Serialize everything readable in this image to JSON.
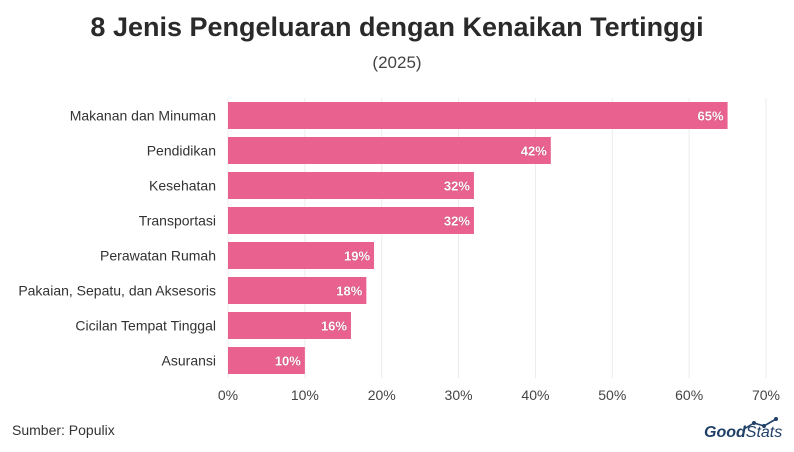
{
  "header": {
    "title": "8 Jenis Pengeluaran dengan Kenaikan Tertinggi",
    "subtitle": "(2025)"
  },
  "footer": {
    "source": "Sumber: Populix",
    "brand_bold": "Good",
    "brand_light": "Stats"
  },
  "colors": {
    "bar": "#e8618f",
    "grid": "#ececec",
    "axis_text": "#444444",
    "brand": "#1f3f66"
  },
  "chart_data": {
    "type": "bar",
    "orientation": "horizontal",
    "title": "8 Jenis Pengeluaran dengan Kenaikan Tertinggi",
    "subtitle": "(2025)",
    "categories": [
      "Makanan dan Minuman",
      "Pendidikan",
      "Kesehatan",
      "Transportasi",
      "Perawatan Rumah",
      "Pakaian, Sepatu, dan Aksesoris",
      "Cicilan Tempat Tinggal",
      "Asuransi"
    ],
    "values": [
      65,
      42,
      32,
      32,
      19,
      18,
      16,
      10
    ],
    "data_labels": [
      "65%",
      "42%",
      "32%",
      "32%",
      "19%",
      "18%",
      "16%",
      "10%"
    ],
    "xlim": [
      0,
      70
    ],
    "x_ticks": [
      0,
      10,
      20,
      30,
      40,
      50,
      60,
      70
    ],
    "x_tick_labels": [
      "0%",
      "10%",
      "20%",
      "30%",
      "40%",
      "50%",
      "60%",
      "70%"
    ],
    "xlabel": "",
    "ylabel": "",
    "grid": true,
    "legend": "none"
  }
}
